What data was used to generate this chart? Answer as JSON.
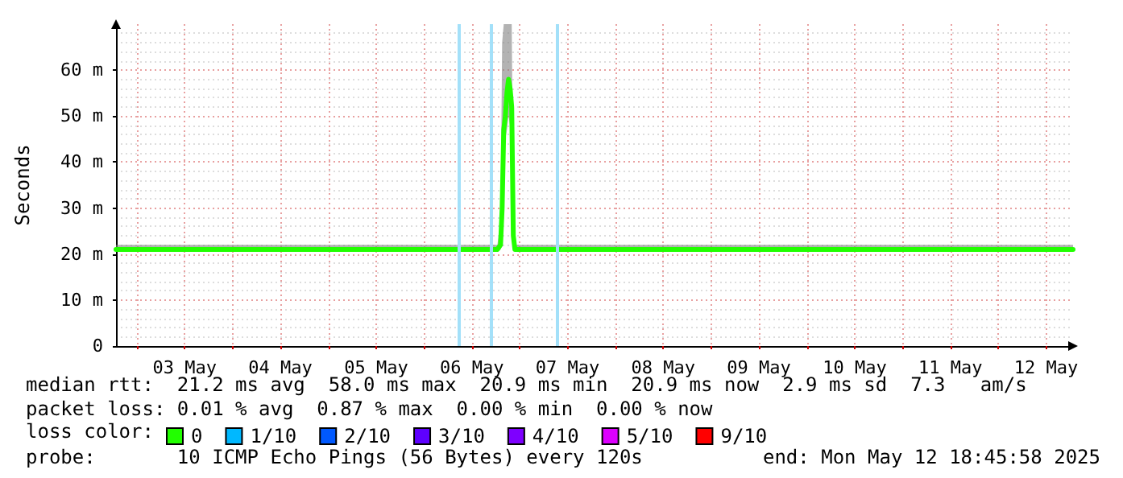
{
  "chart_data": {
    "type": "line",
    "ylabel": "Seconds",
    "legend_title": "loss color:",
    "legend": "bottom",
    "grid": true,
    "marker": "none",
    "line_style": "solid",
    "xlim": [
      "2025-05-02T18:46",
      "2025-05-12T18:46"
    ],
    "xticks": [
      {
        "value": "2025-05-03T00:00",
        "label": null
      },
      {
        "value": "2025-05-03T12:00",
        "label": "03 May"
      },
      {
        "value": "2025-05-04T00:00",
        "label": null
      },
      {
        "value": "2025-05-04T12:00",
        "label": "04 May"
      },
      {
        "value": "2025-05-05T00:00",
        "label": null
      },
      {
        "value": "2025-05-05T12:00",
        "label": "05 May"
      },
      {
        "value": "2025-05-06T00:00",
        "label": null
      },
      {
        "value": "2025-05-06T12:00",
        "label": "06 May"
      },
      {
        "value": "2025-05-07T00:00",
        "label": null
      },
      {
        "value": "2025-05-07T12:00",
        "label": "07 May"
      },
      {
        "value": "2025-05-08T00:00",
        "label": null
      },
      {
        "value": "2025-05-08T12:00",
        "label": "08 May"
      },
      {
        "value": "2025-05-09T00:00",
        "label": null
      },
      {
        "value": "2025-05-09T12:00",
        "label": "09 May"
      },
      {
        "value": "2025-05-10T00:00",
        "label": null
      },
      {
        "value": "2025-05-10T12:00",
        "label": "10 May"
      },
      {
        "value": "2025-05-11T00:00",
        "label": null
      },
      {
        "value": "2025-05-11T12:00",
        "label": "11 May"
      },
      {
        "value": "2025-05-12T00:00",
        "label": null
      },
      {
        "value": "2025-05-12T12:00",
        "label": "12 May"
      }
    ],
    "ylim": [
      0,
      70
    ],
    "yticks": [
      0,
      {
        "value": 10,
        "label": "10 m"
      },
      {
        "value": 20,
        "label": "20 m"
      },
      {
        "value": 30,
        "label": "30 m"
      },
      {
        "value": 40,
        "label": "40 m"
      },
      {
        "value": 50,
        "label": "50 m"
      },
      {
        "value": 60,
        "label": "60 m"
      }
    ],
    "x": [
      "2025-05-02T18:46",
      "2025-05-04T12:00",
      "2025-05-06T18:24",
      "2025-05-06T19:12",
      "2025-05-06T19:36",
      "2025-05-06T20:00",
      "2025-05-06T20:24",
      "2025-05-06T20:48",
      "2025-05-06T21:12",
      "2025-05-06T21:36",
      "2025-05-06T22:00",
      "2025-05-06T22:24",
      "2025-05-06T22:48",
      "2025-05-09T12:00",
      "2025-05-12T18:46"
    ],
    "series": [
      {
        "name": "0",
        "color": "#22ff00",
        "values": [
          21,
          21,
          21,
          22,
          30,
          47,
          50,
          55,
          58,
          56,
          52,
          24,
          21,
          21,
          21
        ],
        "lower": [
          20.5,
          20.5,
          20.5,
          21,
          22,
          40,
          45,
          47,
          50,
          48,
          45,
          22,
          20.5,
          20.5,
          20.5
        ],
        "upper": [
          22,
          22,
          22,
          27,
          66,
          70,
          70,
          70,
          70,
          70,
          70,
          30,
          22,
          22,
          22
        ]
      },
      {
        "name": "1/10",
        "color": "#00b8ff",
        "values": [
          null,
          null,
          null,
          null,
          null,
          null,
          null,
          null,
          null,
          null,
          null,
          null,
          null,
          null,
          null
        ]
      },
      {
        "name": "2/10",
        "color": "#0059ff",
        "values": [
          null,
          null,
          null,
          null,
          null,
          null,
          null,
          null,
          null,
          null,
          null,
          null,
          null,
          null,
          null
        ]
      },
      {
        "name": "3/10",
        "color": "#5e00ff",
        "values": [
          null,
          null,
          null,
          null,
          null,
          null,
          null,
          null,
          null,
          null,
          null,
          null,
          null,
          null,
          null
        ]
      },
      {
        "name": "4/10",
        "color": "#7e00ff",
        "values": [
          null,
          null,
          null,
          null,
          null,
          null,
          null,
          null,
          null,
          null,
          null,
          null,
          null,
          null,
          null
        ]
      },
      {
        "name": "5/10",
        "color": "#dd00ff",
        "values": [
          null,
          null,
          null,
          null,
          null,
          null,
          null,
          null,
          null,
          null,
          null,
          null,
          null,
          null,
          null
        ]
      },
      {
        "name": "9/10",
        "color": "#ff0000",
        "values": [
          null,
          null,
          null,
          null,
          null,
          null,
          null,
          null,
          null,
          null,
          null,
          null,
          null,
          null,
          null
        ]
      }
    ],
    "ref_lines": [
      {
        "axis": "x",
        "value": "2025-05-06T08:48",
        "color": "#a3e0f9"
      },
      {
        "axis": "x",
        "value": "2025-05-06T16:48",
        "color": "#a3e0f9"
      },
      {
        "axis": "x",
        "value": "2025-05-07T09:12",
        "color": "#a3e0f9"
      }
    ],
    "annotations": [
      "median rtt:  21.2 ms avg  58.0 ms max  20.9 ms min  20.9 ms now  2.9 ms sd  7.3   am/s",
      "packet loss: 0.01 % avg  0.87 % max  0.00 % min  0.00 % now",
      "probe:       10 ICMP Echo Pings (56 Bytes) every 120s",
      "end: Mon May 12 18:45:58 2025"
    ]
  }
}
